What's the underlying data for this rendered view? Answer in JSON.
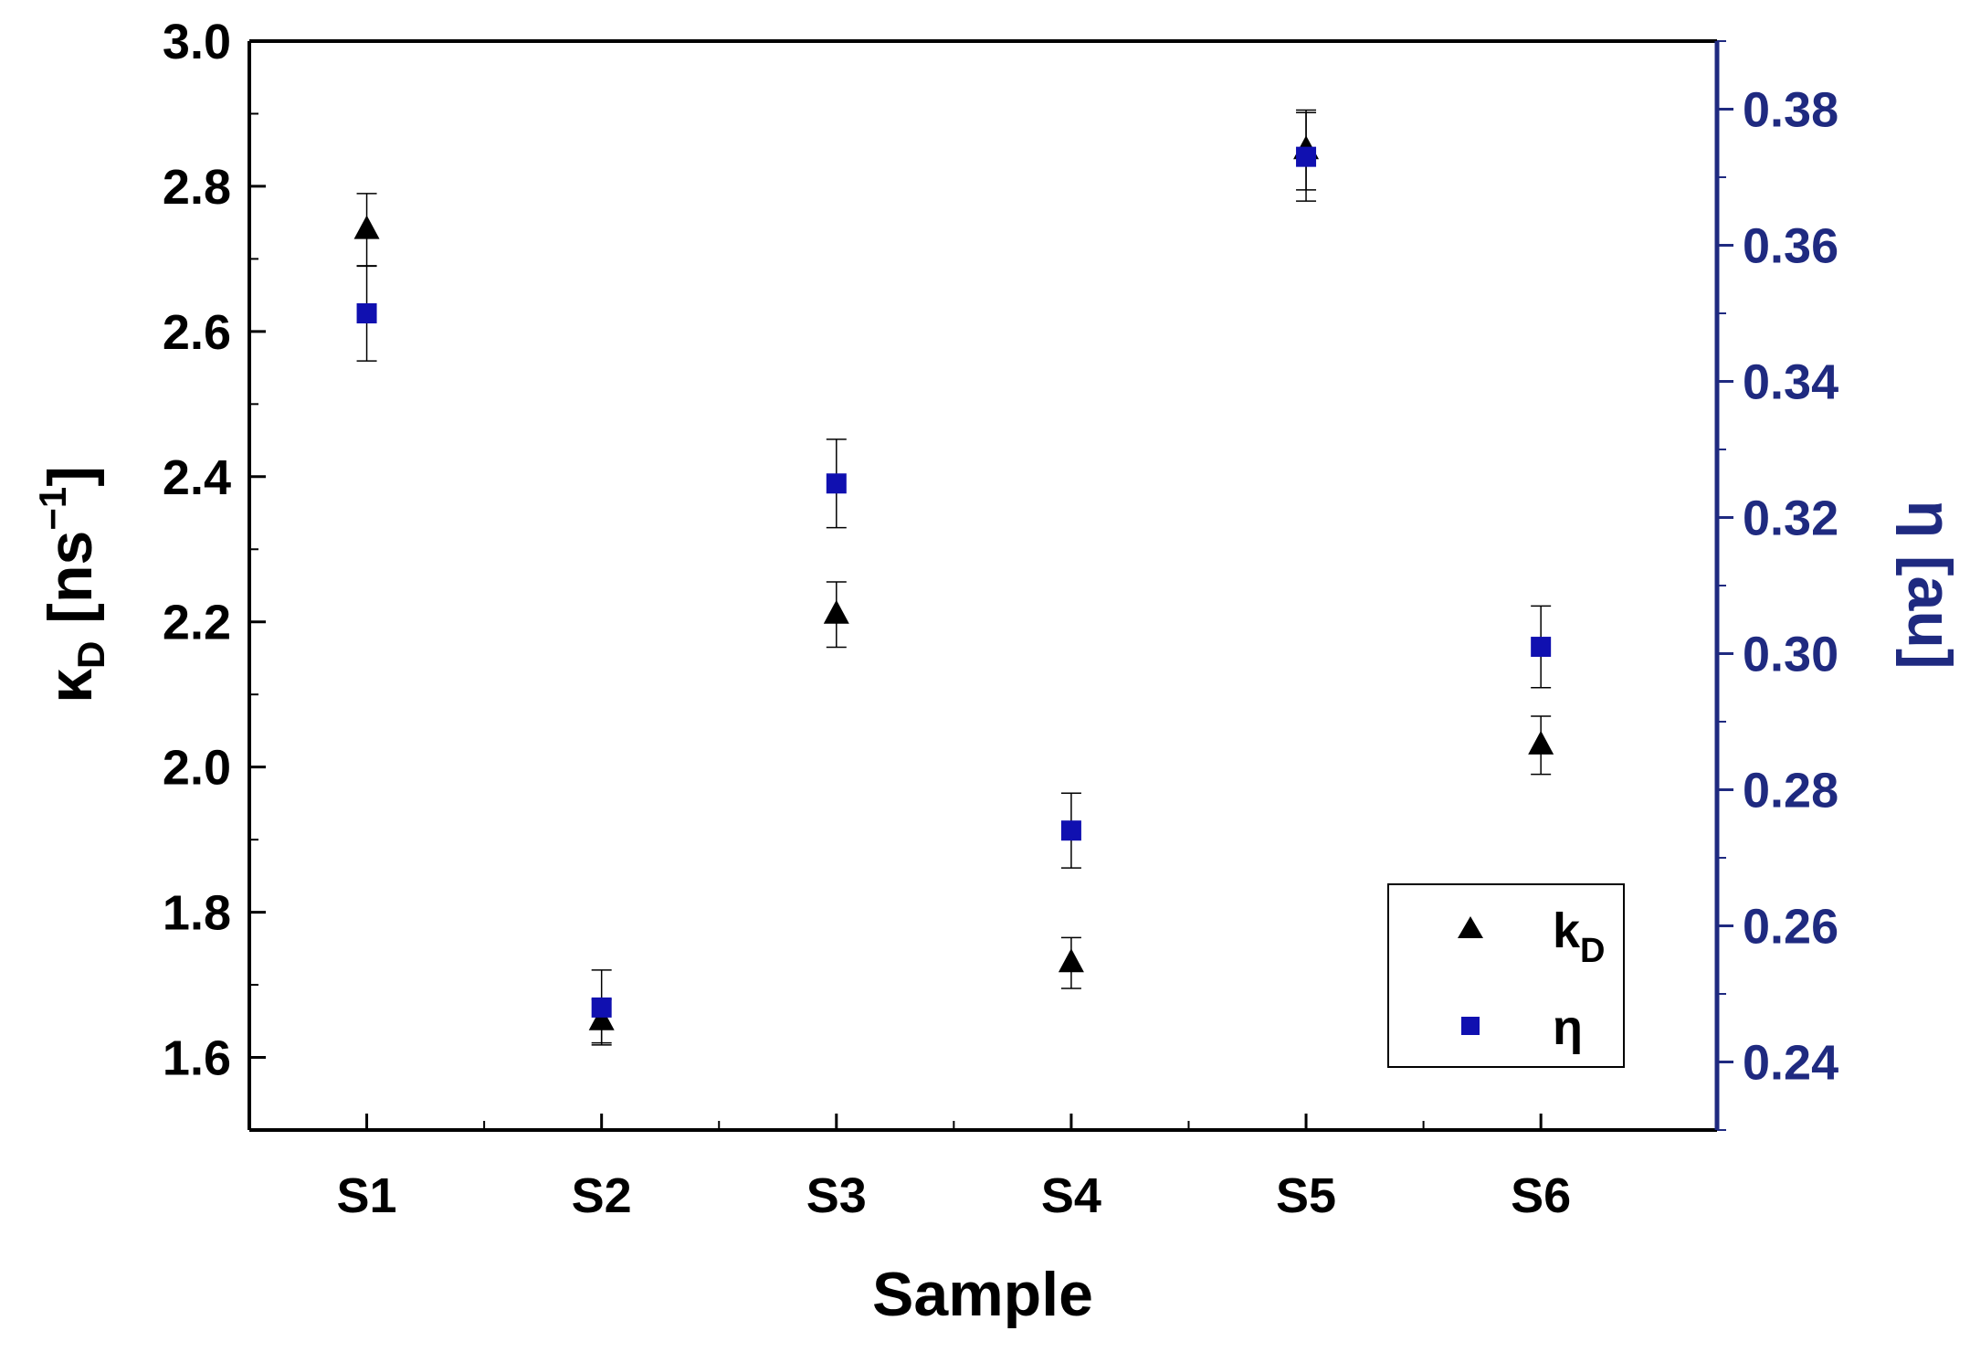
{
  "chart_data": {
    "type": "scatter",
    "categories": [
      "S1",
      "S2",
      "S3",
      "S4",
      "S5",
      "S6"
    ],
    "xlabel": "Sample",
    "ylabel_left": {
      "symbol": "κ",
      "sub": "D",
      "unit_prefix": " [ns",
      "sup": "−1",
      "unit_suffix": "]"
    },
    "ylabel_right": "η [au]",
    "ylim_left": [
      1.5,
      3.0
    ],
    "yticks_left": [
      "1.6",
      "1.8",
      "2.0",
      "2.2",
      "2.4",
      "2.6",
      "2.8",
      "3.0"
    ],
    "ylim_right": [
      0.23,
      0.39
    ],
    "yticks_right": [
      "0.24",
      "0.26",
      "0.28",
      "0.30",
      "0.32",
      "0.34",
      "0.36",
      "0.38"
    ],
    "series": [
      {
        "name": "k",
        "name_sub": "D",
        "axis": "left",
        "marker": "triangle",
        "color": "#000000",
        "values": [
          2.74,
          1.65,
          2.21,
          1.73,
          2.85,
          2.03
        ],
        "errors": [
          0.05,
          0.03,
          0.045,
          0.035,
          0.055,
          0.04
        ]
      },
      {
        "name": "η",
        "axis": "right",
        "marker": "square",
        "color": "#1010b0",
        "values": [
          0.35,
          0.248,
          0.325,
          0.274,
          0.373,
          0.301
        ],
        "errors": [
          0.007,
          0.0055,
          0.0065,
          0.0055,
          0.0065,
          0.006
        ]
      }
    ],
    "legend_position": "bottom-right",
    "grid": false
  }
}
